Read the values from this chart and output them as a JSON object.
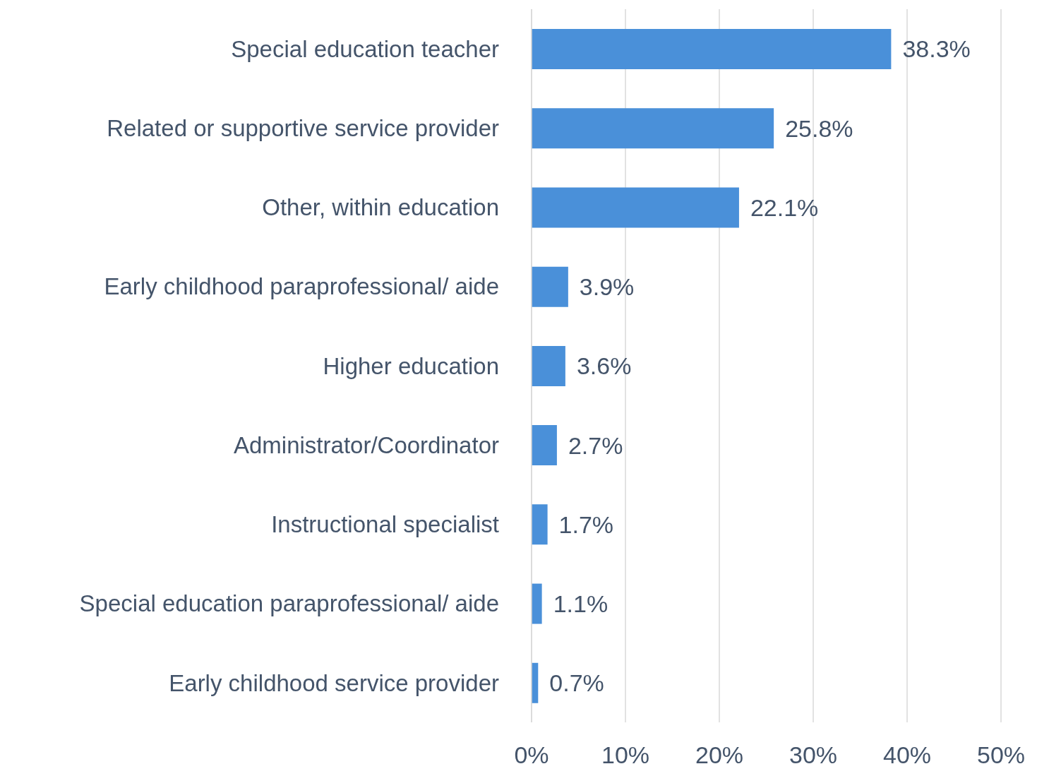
{
  "chart_data": {
    "type": "bar",
    "orientation": "horizontal",
    "categories": [
      "Special education teacher",
      "Related or supportive service provider",
      "Other, within education",
      "Early childhood paraprofessional/ aide",
      "Higher education",
      "Administrator/Coordinator",
      "Instructional specialist",
      "Special education paraprofessional/ aide",
      "Early childhood service provider"
    ],
    "values": [
      38.3,
      25.8,
      22.1,
      3.9,
      3.6,
      2.7,
      1.7,
      1.1,
      0.7
    ],
    "value_labels": [
      "38.3%",
      "25.8%",
      "22.1%",
      "3.9%",
      "3.6%",
      "2.7%",
      "1.7%",
      "1.1%",
      "0.7%"
    ],
    "color": "#4a90d9",
    "xlim": [
      0,
      50
    ],
    "xticks": [
      {
        "value": 0,
        "label": "0%"
      },
      {
        "value": 10,
        "label": "10%"
      },
      {
        "value": 20,
        "label": "20%"
      },
      {
        "value": 30,
        "label": "30%"
      },
      {
        "value": 40,
        "label": "40%"
      },
      {
        "value": 50,
        "label": "50%"
      }
    ],
    "grid": "x"
  }
}
